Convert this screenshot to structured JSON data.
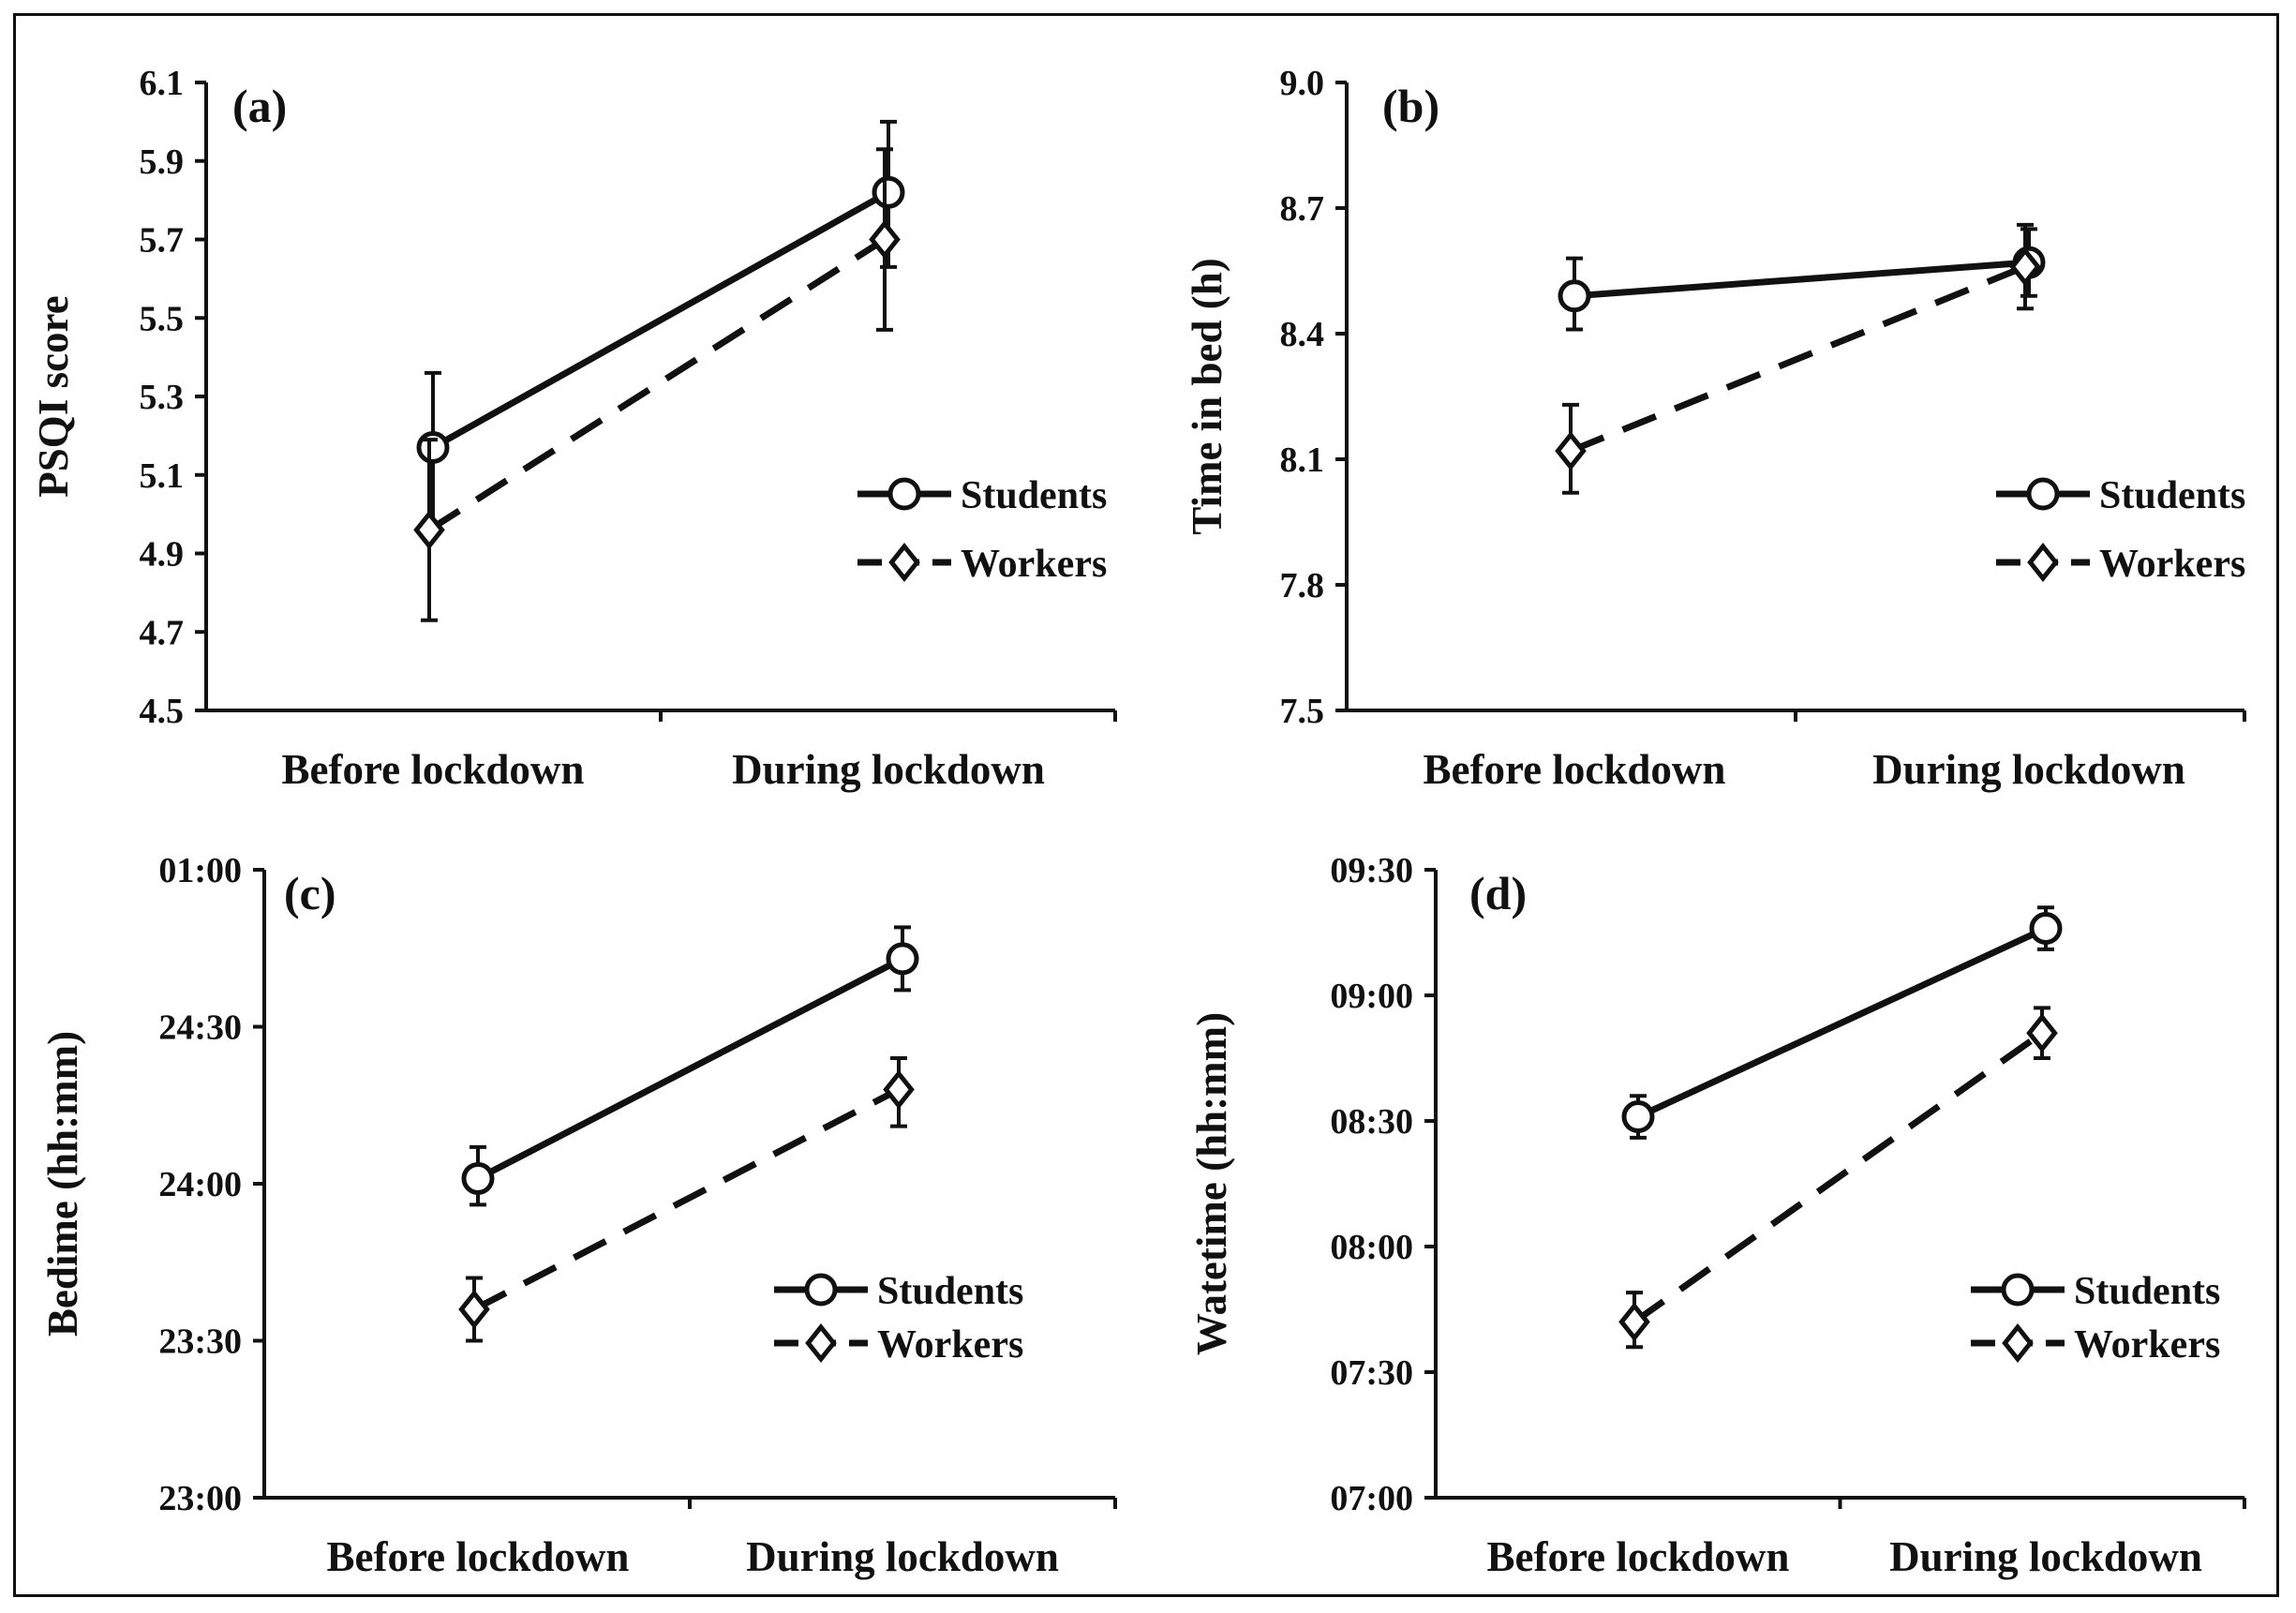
{
  "chart_data": [
    {
      "type": "line",
      "panel_label": "(a)",
      "ylabel": "PSQI score",
      "categories": [
        "Before lockdown",
        "During lockdown"
      ],
      "y_ticks": [
        "4.5",
        "4.7",
        "4.9",
        "5.1",
        "5.3",
        "5.5",
        "5.7",
        "5.9",
        "6.1"
      ],
      "ylim": [
        4.5,
        6.1
      ],
      "legend_position": "right",
      "series": [
        {
          "name": "Students",
          "marker": "circle",
          "line": "solid",
          "values": [
            5.17,
            5.82
          ],
          "err_low": [
            4.97,
            5.63
          ],
          "err_high": [
            5.36,
            6.0
          ]
        },
        {
          "name": "Workers",
          "marker": "diamond",
          "line": "dashed",
          "values": [
            4.96,
            5.7
          ],
          "err_low": [
            4.73,
            5.47
          ],
          "err_high": [
            5.19,
            5.93
          ]
        }
      ]
    },
    {
      "type": "line",
      "panel_label": "(b)",
      "ylabel": "Time in bed (h)",
      "categories": [
        "Before lockdown",
        "During lockdown"
      ],
      "y_ticks": [
        "7.5",
        "7.8",
        "8.1",
        "8.4",
        "8.7",
        "9.0"
      ],
      "ylim": [
        7.5,
        9.0
      ],
      "legend_position": "right",
      "series": [
        {
          "name": "Students",
          "marker": "circle",
          "line": "solid",
          "values": [
            8.49,
            8.57
          ],
          "err_low": [
            8.41,
            8.49
          ],
          "err_high": [
            8.58,
            8.65
          ]
        },
        {
          "name": "Workers",
          "marker": "diamond",
          "line": "dashed",
          "values": [
            8.12,
            8.56
          ],
          "err_low": [
            8.02,
            8.46
          ],
          "err_high": [
            8.23,
            8.66
          ]
        }
      ]
    },
    {
      "type": "line",
      "panel_label": "(c)",
      "ylabel": "Bedime (hh:mm)",
      "categories": [
        "Before lockdown",
        "During lockdown"
      ],
      "y_ticks": [
        "23:00",
        "23:30",
        "24:00",
        "24:30",
        "01:00"
      ],
      "ylim_minutes": [
        1380,
        1500
      ],
      "legend_position": "right",
      "series": [
        {
          "name": "Students",
          "marker": "circle",
          "line": "solid",
          "values_minutes": [
            1441,
            1483
          ],
          "err_low": [
            1436,
            1477
          ],
          "err_high": [
            1447,
            1489
          ]
        },
        {
          "name": "Workers",
          "marker": "diamond",
          "line": "dashed",
          "values_minutes": [
            1416,
            1458
          ],
          "err_low": [
            1410,
            1451
          ],
          "err_high": [
            1422,
            1464
          ]
        }
      ]
    },
    {
      "type": "line",
      "panel_label": "(d)",
      "ylabel": "Watetime (hh:mm)",
      "categories": [
        "Before lockdown",
        "During lockdown"
      ],
      "y_ticks": [
        "07:00",
        "07:30",
        "08:00",
        "08:30",
        "09:00",
        "09:30"
      ],
      "ylim_minutes": [
        420,
        570
      ],
      "legend_position": "right",
      "series": [
        {
          "name": "Students",
          "marker": "circle",
          "line": "solid",
          "values_minutes": [
            511,
            556
          ],
          "err_low": [
            506,
            551
          ],
          "err_high": [
            516,
            561
          ]
        },
        {
          "name": "Workers",
          "marker": "diamond",
          "line": "dashed",
          "values_minutes": [
            462,
            531
          ],
          "err_low": [
            456,
            525
          ],
          "err_high": [
            469,
            537
          ]
        }
      ]
    }
  ]
}
